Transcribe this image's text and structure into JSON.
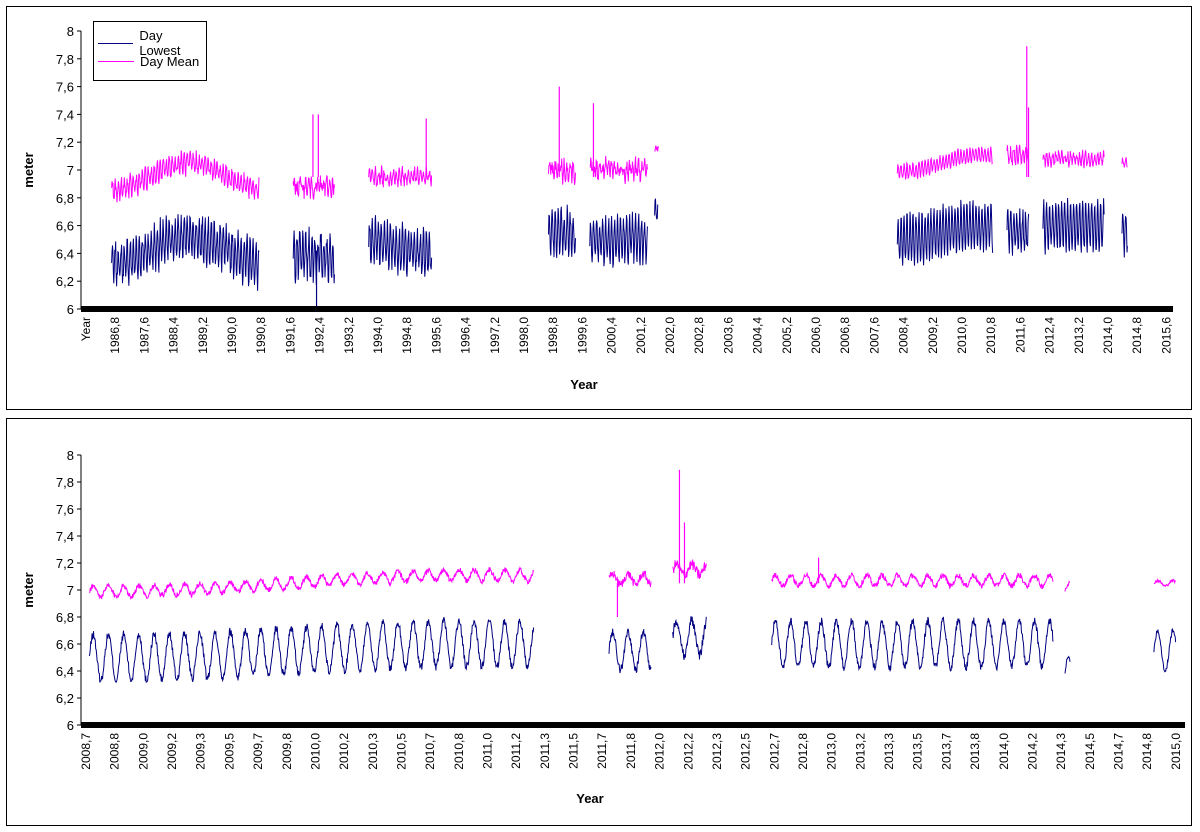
{
  "chart_data": [
    {
      "type": "line",
      "title": "",
      "xlabel": "Year",
      "ylabel": "meter",
      "ylim": [
        6,
        8
      ],
      "y_ticks": [
        "6",
        "6,2",
        "6,4",
        "6,6",
        "6,8",
        "7",
        "7,2",
        "7,4",
        "7,6",
        "7,8",
        "8"
      ],
      "x_range": [
        1986.0,
        2016.2
      ],
      "x_tick_labels": [
        "Year",
        "1986,8",
        "1987,6",
        "1988,4",
        "1989,2",
        "1990,0",
        "1990,8",
        "1991,6",
        "1992,4",
        "1993,2",
        "1994,0",
        "1994,8",
        "1995,6",
        "1996,4",
        "1997,2",
        "1998,0",
        "1998,8",
        "1999,6",
        "2000,4",
        "2001,2",
        "2002,0",
        "2002,8",
        "2003,6",
        "2004,4",
        "2005,2",
        "2006,0",
        "2006,8",
        "2007,6",
        "2008,4",
        "2009,2",
        "2010,0",
        "2010,8",
        "2011,6",
        "2012,4",
        "2013,2",
        "2014,0",
        "2014,8",
        "2015,6"
      ],
      "legend_position": "top-left",
      "grid": false,
      "series": [
        {
          "name": "Day Lowest",
          "color": "#000080",
          "segments": [
            {
              "x0": 1986.85,
              "x1": 1990.95,
              "base": 6.42,
              "amp": 0.14,
              "trend": 0.1,
              "noise": 0.06
            },
            {
              "x0": 1991.9,
              "x1": 1993.05,
              "base": 6.38,
              "amp": 0.15,
              "trend": 0.0,
              "noise": 0.08
            },
            {
              "x0": 1994.0,
              "x1": 1995.75,
              "base": 6.46,
              "amp": 0.14,
              "trend": 0.05,
              "noise": 0.06
            },
            {
              "x0": 1999.0,
              "x1": 1999.75,
              "base": 6.55,
              "amp": 0.15,
              "trend": 0.0,
              "noise": 0.06
            },
            {
              "x0": 2000.15,
              "x1": 2001.75,
              "base": 6.5,
              "amp": 0.15,
              "trend": 0.0,
              "noise": 0.06
            },
            {
              "x0": 2001.95,
              "x1": 2002.05,
              "base": 6.7,
              "amp": 0.08,
              "trend": 0.0,
              "noise": 0.04
            },
            {
              "x0": 2008.7,
              "x1": 2011.35,
              "base": 6.55,
              "amp": 0.17,
              "trend": 0.05,
              "noise": 0.04
            },
            {
              "x0": 2011.75,
              "x1": 2012.35,
              "base": 6.55,
              "amp": 0.14,
              "trend": 0.0,
              "noise": 0.06
            },
            {
              "x0": 2012.75,
              "x1": 2014.45,
              "base": 6.6,
              "amp": 0.17,
              "trend": 0.0,
              "noise": 0.04
            },
            {
              "x0": 2014.95,
              "x1": 2015.1,
              "base": 6.55,
              "amp": 0.14,
              "trend": 0.0,
              "noise": 0.04
            }
          ],
          "spikes": [
            {
              "x": 1992.55,
              "y": 5.99
            }
          ]
        },
        {
          "name": "Day Mean",
          "color": "#ff00ff",
          "segments": [
            {
              "x0": 1986.85,
              "x1": 1990.95,
              "base": 6.95,
              "amp": 0.06,
              "trend": 0.1,
              "noise": 0.04
            },
            {
              "x0": 1991.9,
              "x1": 1993.05,
              "base": 6.88,
              "amp": 0.04,
              "trend": 0.0,
              "noise": 0.06
            },
            {
              "x0": 1994.0,
              "x1": 1995.75,
              "base": 6.95,
              "amp": 0.05,
              "trend": 0.0,
              "noise": 0.04
            },
            {
              "x0": 1999.0,
              "x1": 1999.75,
              "base": 7.0,
              "amp": 0.05,
              "trend": 0.0,
              "noise": 0.06
            },
            {
              "x0": 2000.15,
              "x1": 2001.75,
              "base": 7.0,
              "amp": 0.05,
              "trend": 0.0,
              "noise": 0.06
            },
            {
              "x0": 2001.95,
              "x1": 2002.05,
              "base": 7.15,
              "amp": 0.03,
              "trend": 0.0,
              "noise": 0.04
            },
            {
              "x0": 2008.7,
              "x1": 2011.35,
              "base": 7.05,
              "amp": 0.05,
              "trend": 0.06,
              "noise": 0.02
            },
            {
              "x0": 2011.75,
              "x1": 2012.35,
              "base": 7.1,
              "amp": 0.05,
              "trend": 0.0,
              "noise": 0.04
            },
            {
              "x0": 2012.75,
              "x1": 2014.45,
              "base": 7.08,
              "amp": 0.04,
              "trend": 0.0,
              "noise": 0.03
            },
            {
              "x0": 2014.95,
              "x1": 2015.1,
              "base": 7.05,
              "amp": 0.03,
              "trend": 0.0,
              "noise": 0.02
            }
          ],
          "spikes": [
            {
              "x": 1992.45,
              "y": 7.4
            },
            {
              "x": 1992.6,
              "y": 7.4
            },
            {
              "x": 1995.6,
              "y": 7.37
            },
            {
              "x": 1999.3,
              "y": 7.6
            },
            {
              "x": 2000.25,
              "y": 7.48
            },
            {
              "x": 2012.3,
              "y": 7.89
            },
            {
              "x": 2012.35,
              "y": 7.45
            }
          ]
        }
      ]
    },
    {
      "type": "line",
      "title": "",
      "xlabel": "Year",
      "ylabel": "meter",
      "ylim": [
        6,
        8
      ],
      "y_ticks": [
        "6",
        "6,2",
        "6,4",
        "6,6",
        "6,8",
        "7",
        "7,2",
        "7,4",
        "7,6",
        "7,8",
        "8"
      ],
      "x_range": [
        2008.65,
        2015.2
      ],
      "x_tick_labels": [
        "2008,7",
        "2008,8",
        "2009,0",
        "2009,2",
        "2009,3",
        "2009,5",
        "2009,7",
        "2009,8",
        "2010,0",
        "2010,2",
        "2010,3",
        "2010,5",
        "2010,7",
        "2010,8",
        "2011,0",
        "2011,2",
        "2011,3",
        "2011,5",
        "2011,7",
        "2011,8",
        "2012,0",
        "2012,2",
        "2012,3",
        "2012,5",
        "2012,7",
        "2012,8",
        "2013,0",
        "2013,2",
        "2013,3",
        "2013,5",
        "2013,7",
        "2013,8",
        "2014,0",
        "2014,2",
        "2014,3",
        "2014,5",
        "2014,7",
        "2014,8",
        "2015,0"
      ],
      "grid": false,
      "series": [
        {
          "name": "Day Lowest",
          "color": "#000080",
          "segments": [
            {
              "x0": 2008.7,
              "x1": 2011.35,
              "base": 6.55,
              "amp": 0.17,
              "trend": 0.05,
              "noise": 0.03
            },
            {
              "x0": 2011.8,
              "x1": 2012.05,
              "base": 6.55,
              "amp": 0.14,
              "trend": 0.0,
              "noise": 0.03
            },
            {
              "x0": 2012.18,
              "x1": 2012.38,
              "base": 6.65,
              "amp": 0.13,
              "trend": 0.0,
              "noise": 0.04
            },
            {
              "x0": 2012.77,
              "x1": 2014.45,
              "base": 6.6,
              "amp": 0.17,
              "trend": 0.0,
              "noise": 0.03
            },
            {
              "x0": 2014.52,
              "x1": 2014.55,
              "base": 6.4,
              "amp": 0.1,
              "trend": 0.0,
              "noise": 0.02
            },
            {
              "x0": 2015.05,
              "x1": 2015.18,
              "base": 6.55,
              "amp": 0.15,
              "trend": 0.0,
              "noise": 0.02
            }
          ],
          "spikes": []
        },
        {
          "name": "Day Mean",
          "color": "#ff00ff",
          "segments": [
            {
              "x0": 2008.7,
              "x1": 2011.35,
              "base": 7.05,
              "amp": 0.04,
              "trend": 0.06,
              "noise": 0.02
            },
            {
              "x0": 2011.8,
              "x1": 2012.05,
              "base": 7.08,
              "amp": 0.04,
              "trend": 0.0,
              "noise": 0.03
            },
            {
              "x0": 2012.18,
              "x1": 2012.38,
              "base": 7.15,
              "amp": 0.04,
              "trend": 0.0,
              "noise": 0.04
            },
            {
              "x0": 2012.77,
              "x1": 2014.45,
              "base": 7.07,
              "amp": 0.04,
              "trend": 0.0,
              "noise": 0.02
            },
            {
              "x0": 2014.52,
              "x1": 2014.55,
              "base": 7.0,
              "amp": 0.05,
              "trend": 0.0,
              "noise": 0.02
            },
            {
              "x0": 2015.05,
              "x1": 2015.18,
              "base": 7.05,
              "amp": 0.02,
              "trend": 0.0,
              "noise": 0.01
            }
          ],
          "spikes": [
            {
              "x": 2012.22,
              "y": 7.89
            },
            {
              "x": 2012.25,
              "y": 7.5
            },
            {
              "x": 2013.05,
              "y": 7.24
            },
            {
              "x": 2011.85,
              "y": 6.8
            }
          ]
        }
      ]
    }
  ]
}
